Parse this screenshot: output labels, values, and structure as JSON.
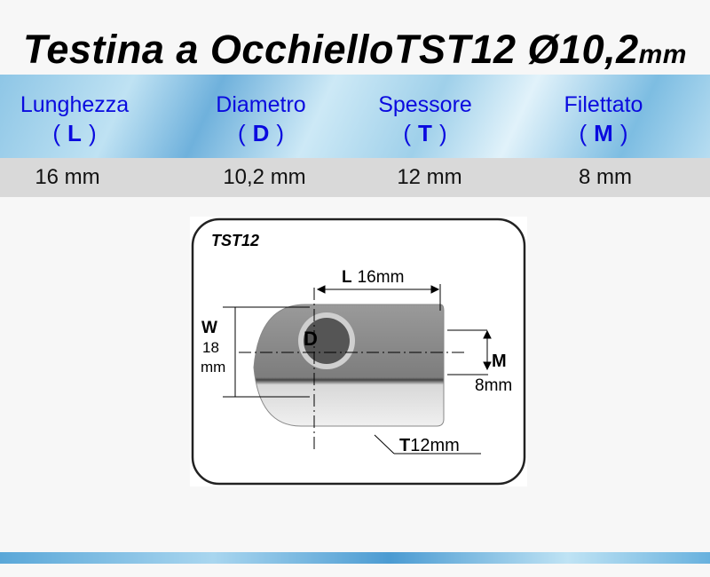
{
  "title": {
    "text": "Testina a OcchielloTST12 Ø10,2",
    "unit": "mm"
  },
  "columns": [
    {
      "name": "Lunghezza",
      "symbol": "L",
      "value": "16 mm"
    },
    {
      "name": "Diametro",
      "symbol": "D",
      "value": "10,2 mm"
    },
    {
      "name": "Spessore",
      "symbol": "T",
      "value": "12 mm"
    },
    {
      "name": "Filettato",
      "symbol": "M",
      "value": "8 mm"
    }
  ],
  "diagram": {
    "model": "TST12",
    "L_label": "L",
    "L_value": "16mm",
    "W_label": "W",
    "W_value": "18",
    "W_unit": "mm",
    "D_label": "D",
    "M_label": "M",
    "M_value": "8mm",
    "T_label": "T",
    "T_value": "12mm"
  },
  "colors": {
    "header_text": "#0a0adf",
    "value_row": "#d9d9d9"
  }
}
